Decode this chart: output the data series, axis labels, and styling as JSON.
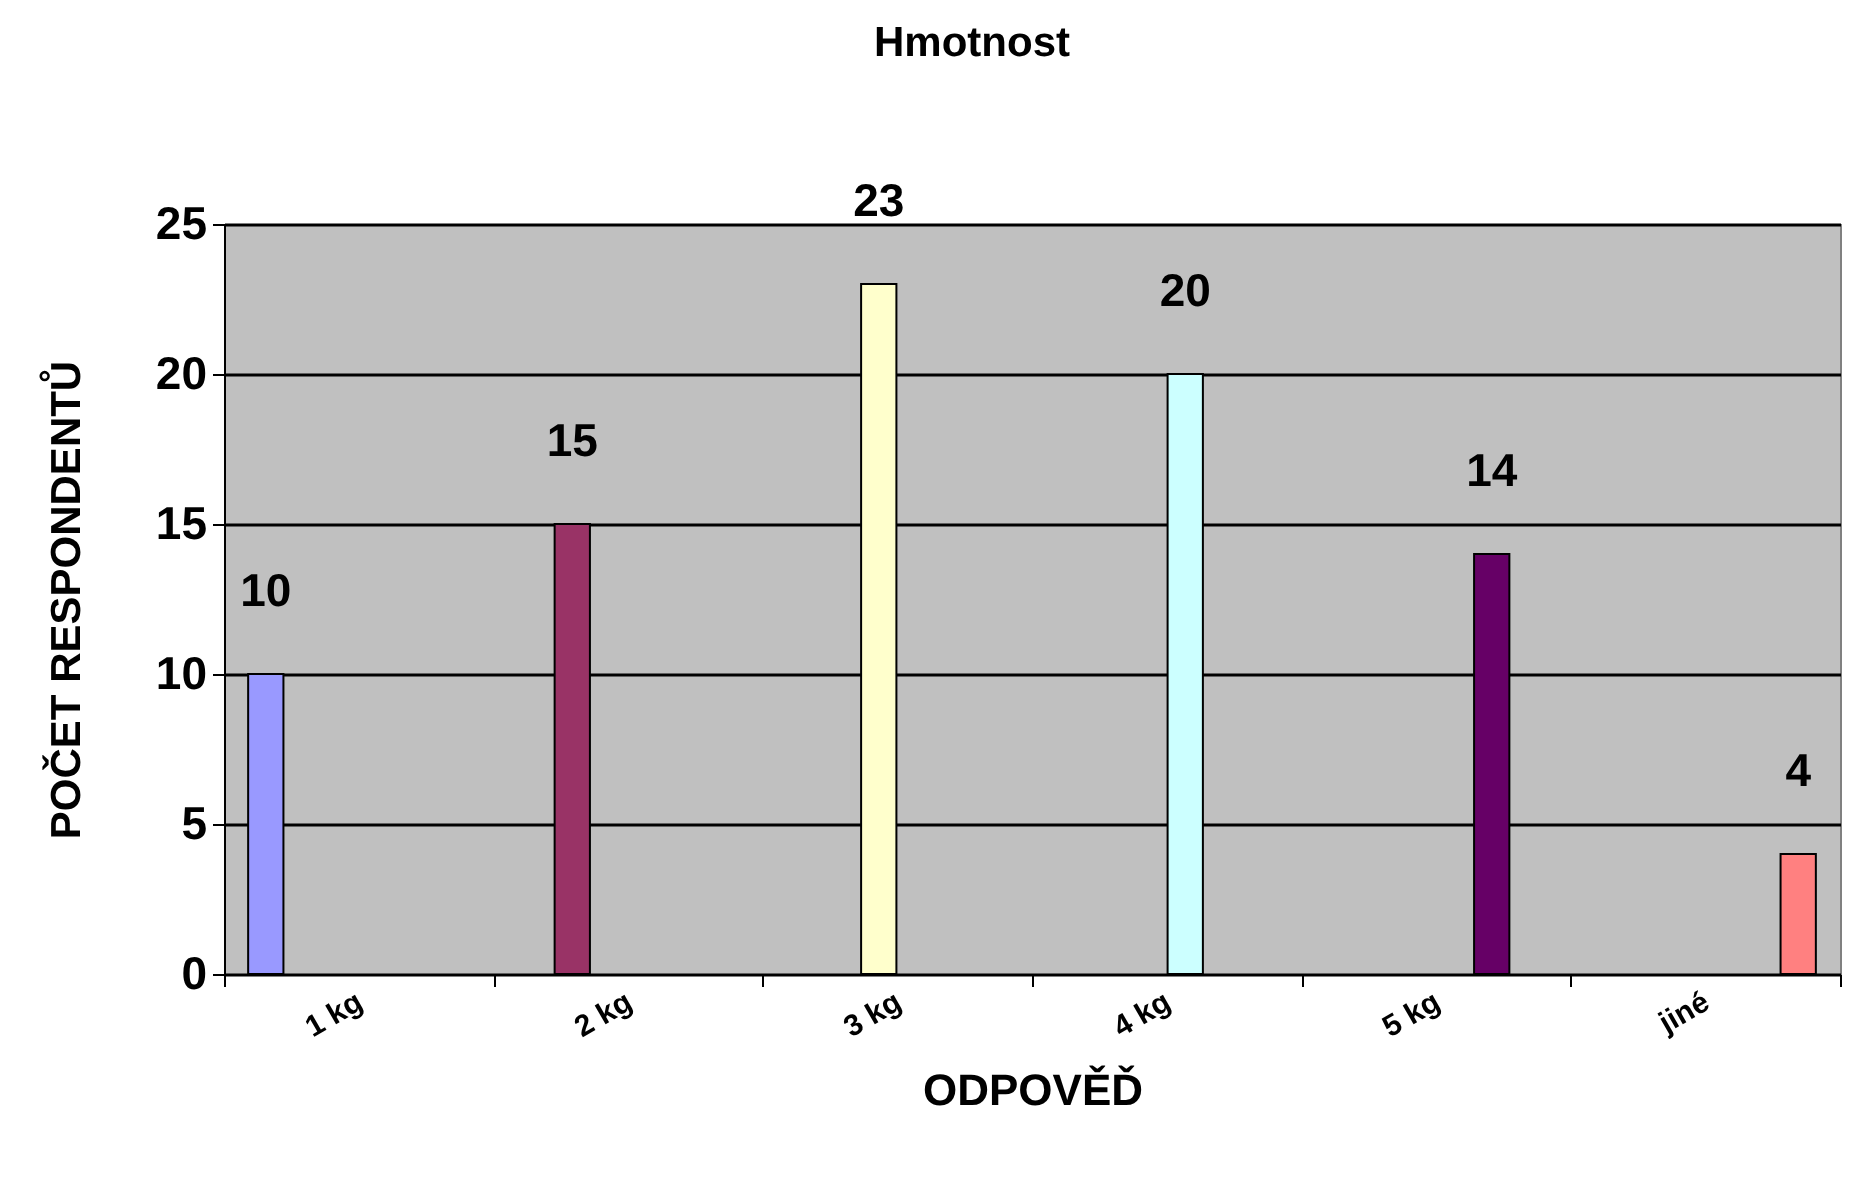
{
  "chart_data": {
    "type": "bar",
    "title": "Hmotnost",
    "xlabel": "ODPOVĚĎ",
    "ylabel": "POČET RESPONDENTŮ",
    "categories": [
      "1 kg",
      "2 kg",
      "3 kg",
      "4 kg",
      "5 kg",
      "jiné"
    ],
    "series": [
      {
        "color": "#9999ff",
        "values": [
          10,
          null,
          null,
          null,
          null,
          null
        ]
      },
      {
        "color": "#993366",
        "values": [
          null,
          15,
          null,
          null,
          null,
          null
        ]
      },
      {
        "color": "#ffffcc",
        "values": [
          null,
          null,
          23,
          null,
          null,
          null
        ]
      },
      {
        "color": "#ccffff",
        "values": [
          null,
          null,
          null,
          20,
          null,
          null
        ]
      },
      {
        "color": "#660066",
        "values": [
          null,
          null,
          null,
          null,
          14,
          null
        ]
      },
      {
        "color": "#ff8080",
        "values": [
          null,
          null,
          null,
          null,
          null,
          4
        ]
      }
    ],
    "ylim": [
      0,
      25
    ],
    "yticks": [
      0,
      5,
      10,
      15,
      20,
      25
    ],
    "grid": "y",
    "data_labels": true
  }
}
